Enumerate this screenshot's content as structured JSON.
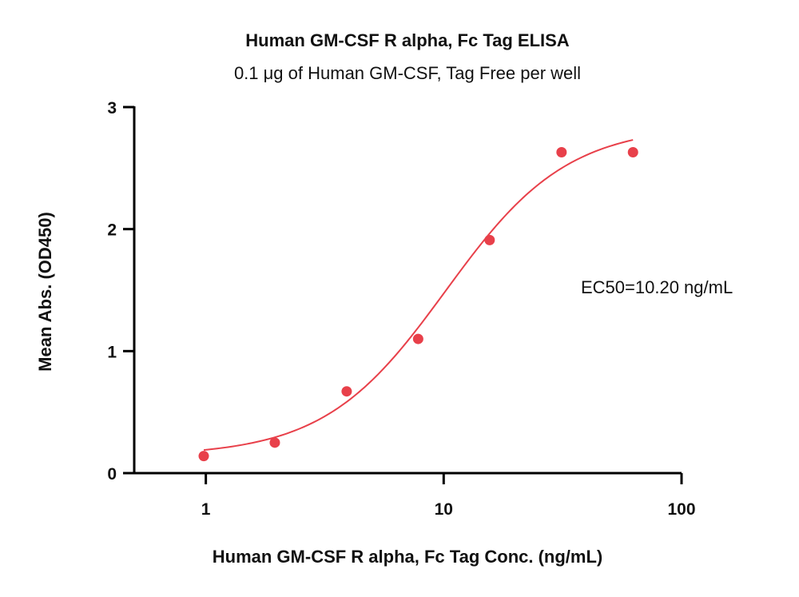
{
  "chart_data": {
    "type": "scatter",
    "title": "Human GM-CSF R alpha, Fc Tag ELISA",
    "subtitle": "0.1 μg of Human GM-CSF, Tag Free per well",
    "xlabel": "Human GM-CSF R alpha, Fc Tag Conc. (ng/mL)",
    "ylabel": "Mean Abs. (OD450)",
    "x_scale": "log",
    "xlim": [
      0.5,
      100
    ],
    "ylim": [
      0,
      3
    ],
    "x_ticks": [
      1,
      10,
      100
    ],
    "x_tick_labels": [
      "1",
      "10",
      "100"
    ],
    "y_ticks": [
      0,
      1,
      2,
      3
    ],
    "y_tick_labels": [
      "0",
      "1",
      "2",
      "3"
    ],
    "grid": false,
    "series": [
      {
        "points": [
          {
            "x": 0.98,
            "y": 0.14
          },
          {
            "x": 1.95,
            "y": 0.25
          },
          {
            "x": 3.91,
            "y": 0.67
          },
          {
            "x": 7.81,
            "y": 1.1
          },
          {
            "x": 15.6,
            "y": 1.91
          },
          {
            "x": 31.3,
            "y": 2.63
          },
          {
            "x": 62.5,
            "y": 2.63
          }
        ],
        "fit": {
          "model": "4PL",
          "bottom": 0.14,
          "top": 2.85,
          "ec50": 10.2,
          "hill": 1.7,
          "x_range": [
            0.98,
            62.5
          ]
        }
      }
    ],
    "annotations": [
      "EC50=10.20 ng/mL"
    ],
    "colors": {
      "series": "#e8404a",
      "axis": "#000000",
      "text": "#111111"
    }
  }
}
